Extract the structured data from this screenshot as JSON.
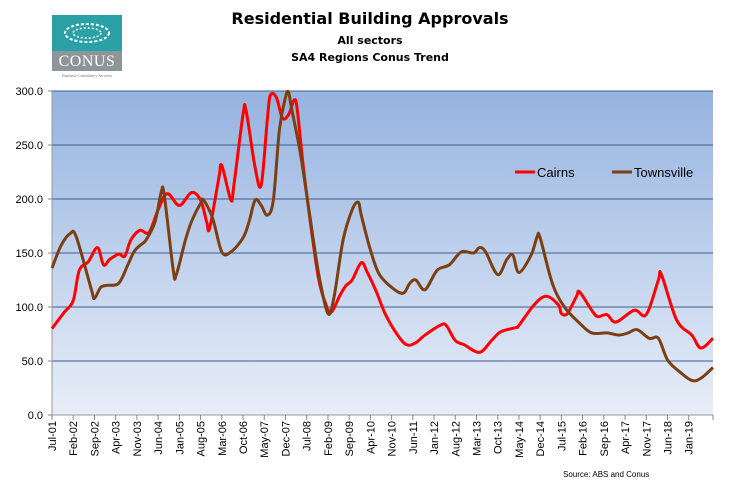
{
  "chart_data": {
    "type": "line",
    "title": "Residential Building Approvals",
    "subtitles": [
      "All sectors",
      "SA4 Regions Conus Trend"
    ],
    "source": "Source: ABS and Conus",
    "xlabel": "",
    "ylabel": "",
    "ylim": [
      0,
      300
    ],
    "yticks": [
      "0.0",
      "50.0",
      "100.0",
      "150.0",
      "200.0",
      "250.0",
      "300.0"
    ],
    "xlim": [
      "Jul-01",
      "Sep-19"
    ],
    "xticks": [
      "Jul-01",
      "Feb-02",
      "Sep-02",
      "Apr-03",
      "Nov-03",
      "Jun-04",
      "Jan-05",
      "Aug-05",
      "Mar-06",
      "Oct-06",
      "May-07",
      "Dec-07",
      "Jul-08",
      "Feb-09",
      "Sep-09",
      "Apr-10",
      "Nov-10",
      "Jun-11",
      "Jan-12",
      "Aug-12",
      "Mar-13",
      "Oct-13",
      "May-14",
      "Dec-14",
      "Jul-15",
      "Feb-16",
      "Sep-16",
      "Apr-17",
      "Nov-17",
      "Jun-18",
      "Jan-19"
    ],
    "grid": true,
    "legend_placement": "upper-right",
    "background": {
      "top": "#95b3e0",
      "bottom": "#e8eef8"
    },
    "series": [
      {
        "name": "Cairns",
        "color": "#ff0000",
        "points": [
          [
            "Jul-01",
            80
          ],
          [
            "Nov-01",
            95
          ],
          [
            "Feb-02",
            106
          ],
          [
            "Apr-02",
            134
          ],
          [
            "Jul-02",
            142
          ],
          [
            "Oct-02",
            155
          ],
          [
            "Dec-02",
            139
          ],
          [
            "Feb-03",
            144
          ],
          [
            "May-03",
            149
          ],
          [
            "Jul-03",
            147
          ],
          [
            "Sep-03",
            162
          ],
          [
            "Dec-03",
            171
          ],
          [
            "Mar-04",
            169
          ],
          [
            "Jun-04",
            190
          ],
          [
            "Sep-04",
            205
          ],
          [
            "Jan-05",
            194
          ],
          [
            "May-05",
            206
          ],
          [
            "Aug-05",
            199
          ],
          [
            "Oct-05",
            179
          ],
          [
            "Nov-05",
            173
          ],
          [
            "Feb-06",
            219
          ],
          [
            "Mar-06",
            231
          ],
          [
            "Jun-06",
            199
          ],
          [
            "Jul-06",
            213
          ],
          [
            "Oct-06",
            278
          ],
          [
            "Nov-06",
            282
          ],
          [
            "Feb-07",
            229
          ],
          [
            "Apr-07",
            213
          ],
          [
            "Jun-07",
            273
          ],
          [
            "Jul-07",
            296
          ],
          [
            "Sep-07",
            294
          ],
          [
            "Nov-07",
            275
          ],
          [
            "Jan-08",
            278
          ],
          [
            "Mar-08",
            292
          ],
          [
            "Apr-08",
            280
          ],
          [
            "Jun-08",
            227
          ],
          [
            "Sep-08",
            162
          ],
          [
            "Nov-08",
            125
          ],
          [
            "Jan-09",
            105
          ],
          [
            "Mar-09",
            95
          ],
          [
            "Jun-09",
            111
          ],
          [
            "Aug-09",
            120
          ],
          [
            "Oct-09",
            125
          ],
          [
            "Jan-10",
            141
          ],
          [
            "Mar-10",
            132
          ],
          [
            "Jun-10",
            114
          ],
          [
            "Sep-10",
            93
          ],
          [
            "Jan-11",
            74
          ],
          [
            "Apr-11",
            65
          ],
          [
            "Jul-11",
            67
          ],
          [
            "Oct-11",
            74
          ],
          [
            "Mar-12",
            83
          ],
          [
            "May-12",
            83
          ],
          [
            "Aug-12",
            69
          ],
          [
            "Nov-12",
            65
          ],
          [
            "Apr-13",
            58
          ],
          [
            "Aug-13",
            69
          ],
          [
            "Nov-13",
            77
          ],
          [
            "Apr-14",
            81
          ],
          [
            "May-14",
            83
          ],
          [
            "Oct-14",
            102
          ],
          [
            "Feb-15",
            110
          ],
          [
            "Jun-15",
            102
          ],
          [
            "Jul-15",
            94
          ],
          [
            "Sep-15",
            94
          ],
          [
            "Dec-15",
            110
          ],
          [
            "Jan-16",
            114
          ],
          [
            "May-16",
            97
          ],
          [
            "Jul-16",
            91
          ],
          [
            "Oct-16",
            93
          ],
          [
            "Jan-17",
            86
          ],
          [
            "Jul-17",
            97
          ],
          [
            "Nov-17",
            93
          ],
          [
            "Mar-18",
            125
          ],
          [
            "Apr-18",
            130
          ],
          [
            "Sep-18",
            88
          ],
          [
            "Feb-19",
            74
          ],
          [
            "May-19",
            62
          ],
          [
            "Sep-19",
            71
          ]
        ]
      },
      {
        "name": "Townsville",
        "color": "#7b3f12",
        "points": [
          [
            "Jul-01",
            136
          ],
          [
            "Oct-01",
            157
          ],
          [
            "Jan-02",
            168
          ],
          [
            "Mar-02",
            165
          ],
          [
            "Aug-02",
            116
          ],
          [
            "Sep-02",
            108
          ],
          [
            "Nov-02",
            118
          ],
          [
            "Jan-03",
            120
          ],
          [
            "May-03",
            122
          ],
          [
            "Aug-03",
            139
          ],
          [
            "Oct-03",
            151
          ],
          [
            "Dec-03",
            157
          ],
          [
            "Feb-04",
            162
          ],
          [
            "May-04",
            179
          ],
          [
            "Jul-04",
            206
          ],
          [
            "Aug-04",
            204
          ],
          [
            "Nov-04",
            134
          ],
          [
            "Dec-04",
            130
          ],
          [
            "Mar-05",
            162
          ],
          [
            "May-05",
            179
          ],
          [
            "Aug-05",
            196
          ],
          [
            "Sep-05",
            199
          ],
          [
            "Dec-05",
            182
          ],
          [
            "Mar-06",
            151
          ],
          [
            "Jun-06",
            151
          ],
          [
            "Oct-06",
            164
          ],
          [
            "Dec-06",
            179
          ],
          [
            "Feb-07",
            199
          ],
          [
            "Apr-07",
            194
          ],
          [
            "Jun-07",
            185
          ],
          [
            "Aug-07",
            199
          ],
          [
            "Oct-07",
            264
          ],
          [
            "Dec-07",
            294
          ],
          [
            "Jan-08",
            299
          ],
          [
            "Feb-08",
            284
          ],
          [
            "May-08",
            241
          ],
          [
            "Aug-08",
            185
          ],
          [
            "Nov-08",
            130
          ],
          [
            "Feb-09",
            94
          ],
          [
            "Apr-09",
            109
          ],
          [
            "Jul-09",
            162
          ],
          [
            "Oct-09",
            190
          ],
          [
            "Dec-09",
            197
          ],
          [
            "Jan-10",
            185
          ],
          [
            "Apr-10",
            153
          ],
          [
            "Jul-10",
            130
          ],
          [
            "Dec-10",
            116
          ],
          [
            "Mar-11",
            113
          ],
          [
            "May-11",
            122
          ],
          [
            "Jul-11",
            125
          ],
          [
            "Oct-11",
            116
          ],
          [
            "Feb-12",
            134
          ],
          [
            "Jun-12",
            139
          ],
          [
            "Oct-12",
            151
          ],
          [
            "Feb-13",
            150
          ],
          [
            "Apr-13",
            155
          ],
          [
            "Jun-13",
            151
          ],
          [
            "Oct-13",
            130
          ],
          [
            "Jan-14",
            144
          ],
          [
            "Mar-14",
            148
          ],
          [
            "May-14",
            132
          ],
          [
            "Sep-14",
            148
          ],
          [
            "Nov-14",
            165
          ],
          [
            "Dec-14",
            164
          ],
          [
            "Apr-15",
            122
          ],
          [
            "Aug-15",
            100
          ],
          [
            "Jan-16",
            85
          ],
          [
            "May-16",
            76
          ],
          [
            "Oct-16",
            76
          ],
          [
            "Feb-17",
            74
          ],
          [
            "May-17",
            76
          ],
          [
            "Aug-17",
            79
          ],
          [
            "Dec-17",
            71
          ],
          [
            "Mar-18",
            71
          ],
          [
            "Jun-18",
            51
          ],
          [
            "Oct-18",
            40
          ],
          [
            "Feb-19",
            32
          ],
          [
            "May-19",
            34
          ],
          [
            "Sep-19",
            44
          ]
        ]
      }
    ]
  },
  "logo": {
    "text": "CONUS",
    "tagline": "Business Consultancy Services"
  }
}
